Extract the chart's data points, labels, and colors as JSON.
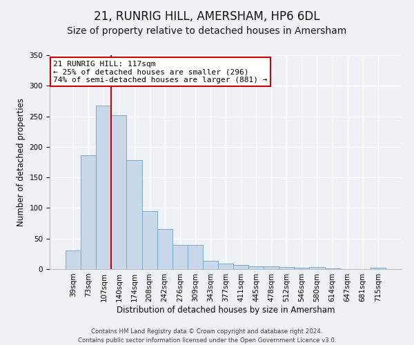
{
  "title": "21, RUNRIG HILL, AMERSHAM, HP6 6DL",
  "subtitle": "Size of property relative to detached houses in Amersham",
  "categories": [
    "39sqm",
    "73sqm",
    "107sqm",
    "140sqm",
    "174sqm",
    "208sqm",
    "242sqm",
    "276sqm",
    "309sqm",
    "343sqm",
    "377sqm",
    "411sqm",
    "445sqm",
    "478sqm",
    "512sqm",
    "546sqm",
    "580sqm",
    "614sqm",
    "647sqm",
    "681sqm",
    "715sqm"
  ],
  "values": [
    30,
    186,
    268,
    252,
    178,
    95,
    65,
    40,
    39,
    13,
    9,
    7,
    5,
    5,
    3,
    2,
    3,
    1,
    0,
    0,
    2
  ],
  "bar_color": "#c8d8e8",
  "bar_edge_color": "#7aaac8",
  "vline_x_index": 2,
  "vline_color": "#cc0000",
  "ylabel": "Number of detached properties",
  "xlabel": "Distribution of detached houses by size in Amersham",
  "ylim": [
    0,
    350
  ],
  "yticks": [
    0,
    50,
    100,
    150,
    200,
    250,
    300,
    350
  ],
  "annotation_title": "21 RUNRIG HILL: 117sqm",
  "annotation_line1": "← 25% of detached houses are smaller (296)",
  "annotation_line2": "74% of semi-detached houses are larger (881) →",
  "annotation_box_color": "#ffffff",
  "annotation_box_edge_color": "#cc0000",
  "footer1": "Contains HM Land Registry data © Crown copyright and database right 2024.",
  "footer2": "Contains public sector information licensed under the Open Government Licence v3.0.",
  "background_color": "#eef2f7",
  "grid_color": "#ffffff",
  "title_fontsize": 12,
  "subtitle_fontsize": 10,
  "axis_label_fontsize": 8.5,
  "tick_fontsize": 7.5,
  "footer_fontsize": 6.2
}
